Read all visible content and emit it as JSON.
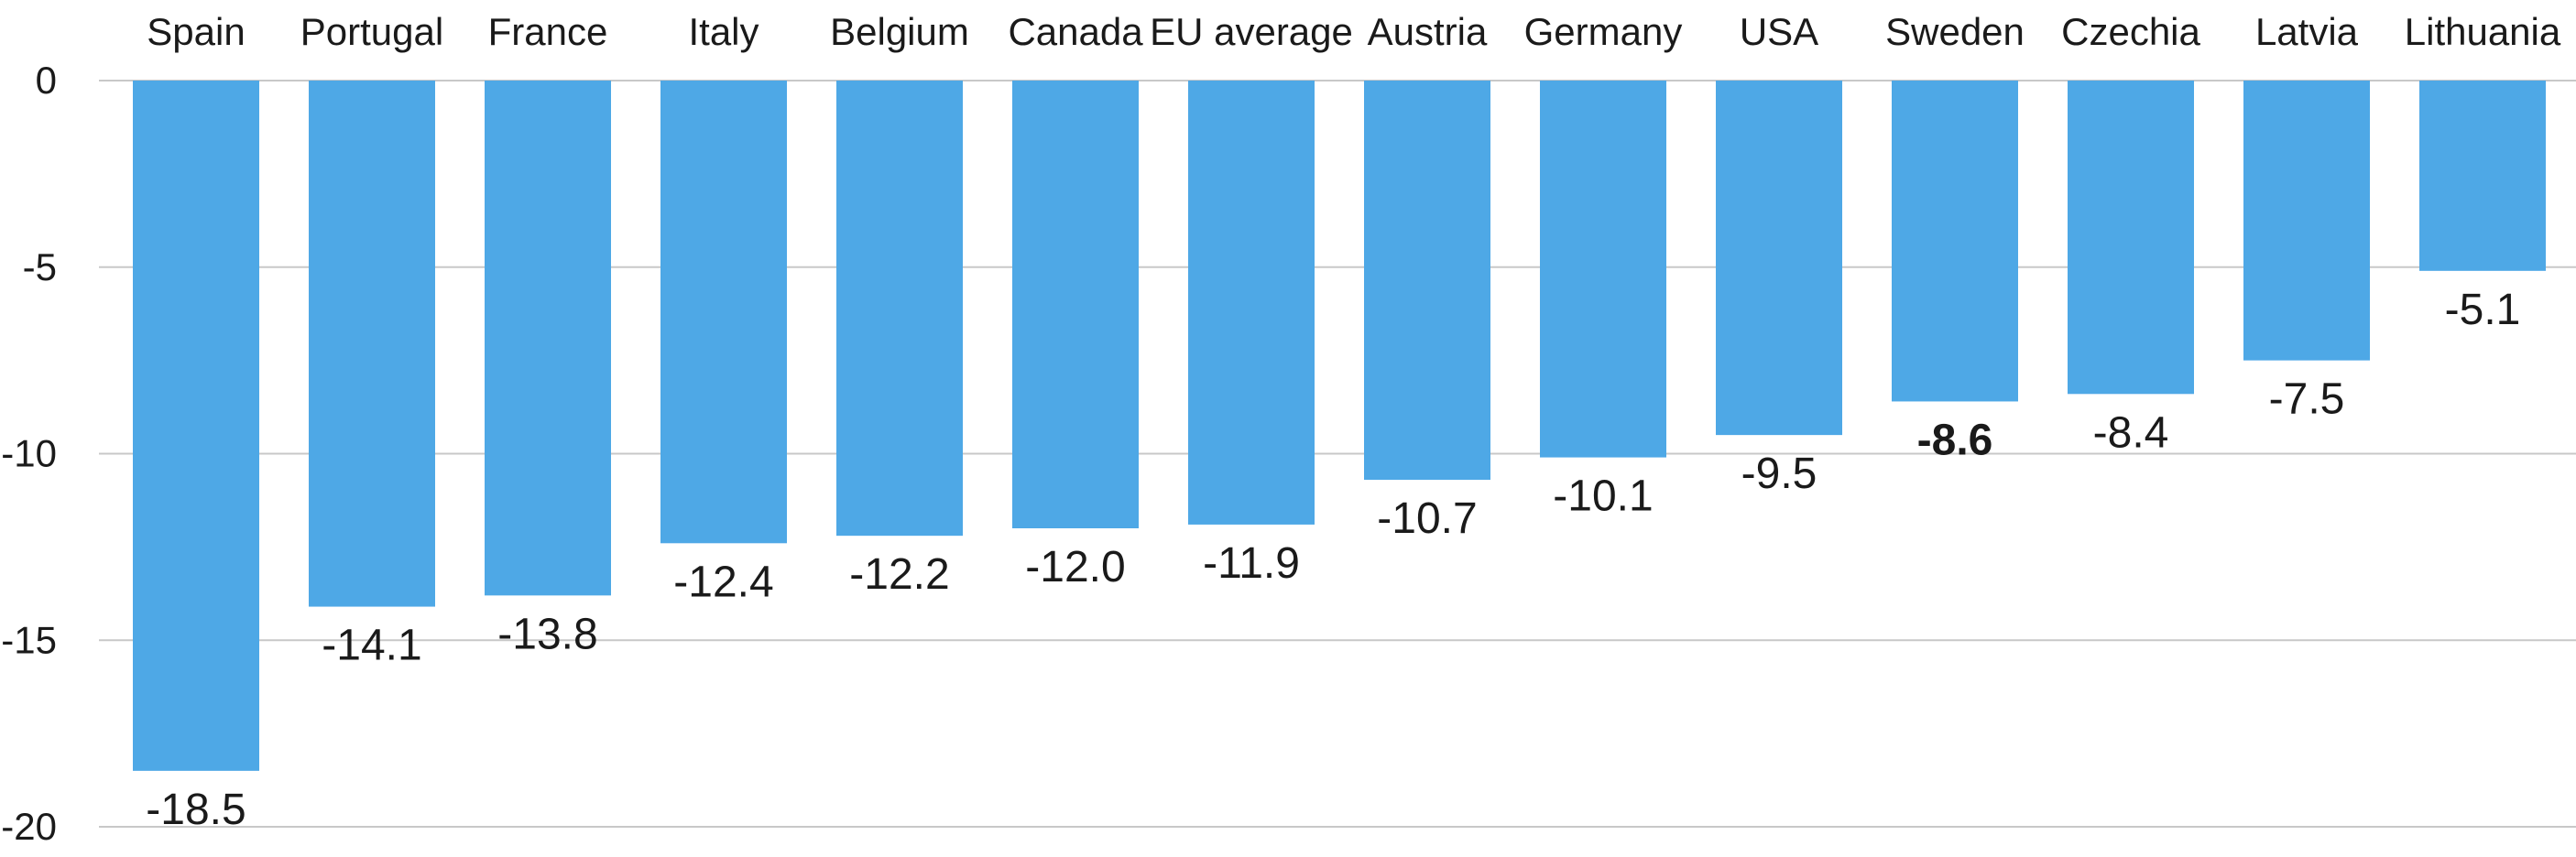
{
  "chart_data": {
    "type": "bar",
    "title": "",
    "xlabel": "",
    "ylabel": "",
    "ylim": [
      -20,
      0
    ],
    "y_ticks": [
      0,
      -5,
      -10,
      -15,
      -20
    ],
    "grid": true,
    "legend": "none",
    "x_axis_position": "top",
    "bar_color": "#4EA8E6",
    "highlight_category": "Sweden",
    "categories": [
      "Spain",
      "Portugal",
      "France",
      "Italy",
      "Belgium",
      "Canada",
      "EU average",
      "Austria",
      "Germany",
      "USA",
      "Sweden",
      "Czechia",
      "Latvia",
      "Lithuania"
    ],
    "values": [
      -18.5,
      -14.1,
      -13.8,
      -12.4,
      -12.2,
      -12.0,
      -11.9,
      -10.7,
      -10.1,
      -9.5,
      -8.6,
      -8.4,
      -7.5,
      -5.1
    ],
    "value_labels": [
      "-18.5",
      "-14.1",
      "-13.8",
      "-12.4",
      "-12.2",
      "-12.0",
      "-11.9",
      "-10.7",
      "-10.1",
      "-9.5",
      "-8.6",
      "-8.4",
      "-7.5",
      "-5.1"
    ]
  }
}
